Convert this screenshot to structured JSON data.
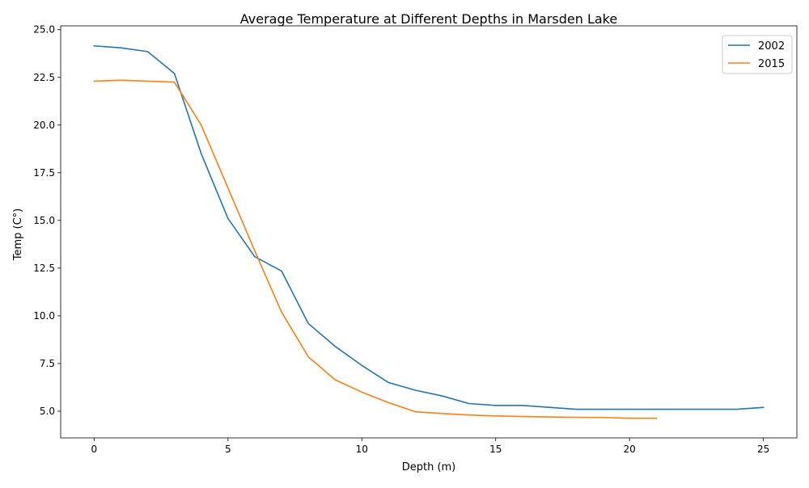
{
  "chart_data": {
    "type": "line",
    "title": "Average Temperature at Different Depths in Marsden Lake",
    "xlabel": "Depth (m)",
    "ylabel": "Temp (C°)",
    "xlim": [
      -1.25,
      26.25
    ],
    "ylim": [
      3.6,
      25.2
    ],
    "xticks": [
      0,
      5,
      10,
      15,
      20,
      25
    ],
    "xtick_labels": [
      "0",
      "5",
      "10",
      "15",
      "20",
      "25"
    ],
    "yticks": [
      5.0,
      7.5,
      10.0,
      12.5,
      15.0,
      17.5,
      20.0,
      22.5,
      25.0
    ],
    "ytick_labels": [
      "5.0",
      "7.5",
      "10.0",
      "12.5",
      "15.0",
      "17.5",
      "20.0",
      "22.5",
      "25.0"
    ],
    "grid": false,
    "legend_position": "top-right",
    "series": [
      {
        "name": "2002",
        "color": "#1f77b4",
        "x": [
          0,
          1,
          2,
          3,
          4,
          5,
          6,
          7,
          8,
          9,
          10,
          11,
          12,
          13,
          14,
          15,
          16,
          17,
          18,
          19,
          20,
          21,
          22,
          23,
          24,
          25
        ],
        "y": [
          24.15,
          24.05,
          23.85,
          22.7,
          18.5,
          15.1,
          13.1,
          12.35,
          9.6,
          8.4,
          7.4,
          6.5,
          6.1,
          5.8,
          5.4,
          5.3,
          5.3,
          5.2,
          5.1,
          5.1,
          5.1,
          5.1,
          5.1,
          5.1,
          5.1,
          5.2
        ]
      },
      {
        "name": "2015",
        "color": "#ff7f0e",
        "x": [
          0,
          1,
          2,
          3,
          4,
          5,
          6,
          7,
          8,
          9,
          10,
          11,
          12,
          13,
          14,
          15,
          16,
          17,
          18,
          19,
          20,
          21
        ],
        "y": [
          22.3,
          22.35,
          22.3,
          22.25,
          20.0,
          16.7,
          13.4,
          10.2,
          7.85,
          6.65,
          6.0,
          5.45,
          4.97,
          4.88,
          4.8,
          4.75,
          4.72,
          4.7,
          4.68,
          4.67,
          4.63,
          4.63
        ]
      }
    ]
  }
}
